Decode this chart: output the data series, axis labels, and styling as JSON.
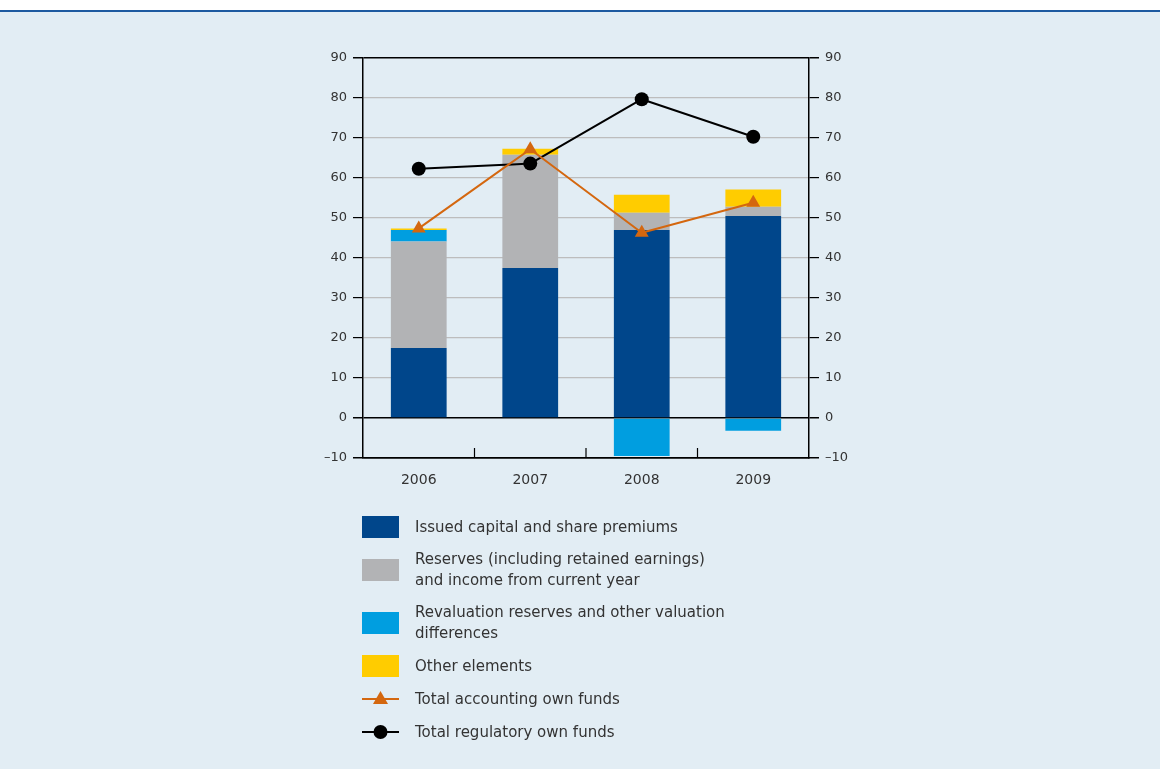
{
  "chart_data": {
    "type": "bar",
    "stacked": true,
    "categories": [
      "2006",
      "2007",
      "2008",
      "2009"
    ],
    "series": [
      {
        "name": "Issued capital and share premiums",
        "color": "#00468b",
        "values": [
          17.5,
          37.5,
          47,
          50.5
        ]
      },
      {
        "name": "Reserves (including retained earnings) and income from current year",
        "color": "#b2b3b5",
        "values": [
          26.6,
          28.3,
          4.3,
          2.3
        ]
      },
      {
        "name": "Revaluation reserves and other valuation differences",
        "color": "#009ee0",
        "values": [
          2.9,
          null,
          -9.5,
          -3.2
        ]
      },
      {
        "name": "Other elements",
        "color": "#ffcc00",
        "values": [
          0.4,
          1.5,
          4.5,
          4.3
        ]
      },
      {
        "name": "Total accounting own funds",
        "type": "line",
        "color": "#d4670f",
        "marker": "triangle",
        "values": [
          47.4,
          67.2,
          46.3,
          53.8
        ]
      },
      {
        "name": "Total regulatory own funds",
        "type": "line",
        "color": "#000000",
        "marker": "circle",
        "values": [
          62.3,
          63.6,
          79.7,
          70.3
        ]
      }
    ],
    "ylim": [
      -10,
      90
    ],
    "yticks": [
      {
        "value": -10,
        "label": "–10"
      },
      0,
      10,
      20,
      30,
      40,
      50,
      60,
      70,
      80,
      90
    ],
    "y2lim": [
      -10,
      90
    ],
    "y2ticks": [
      {
        "value": -10,
        "label": "–10"
      },
      0,
      10,
      20,
      30,
      40,
      50,
      60,
      70,
      80,
      90
    ],
    "grid": "y",
    "legend": "bottom"
  }
}
